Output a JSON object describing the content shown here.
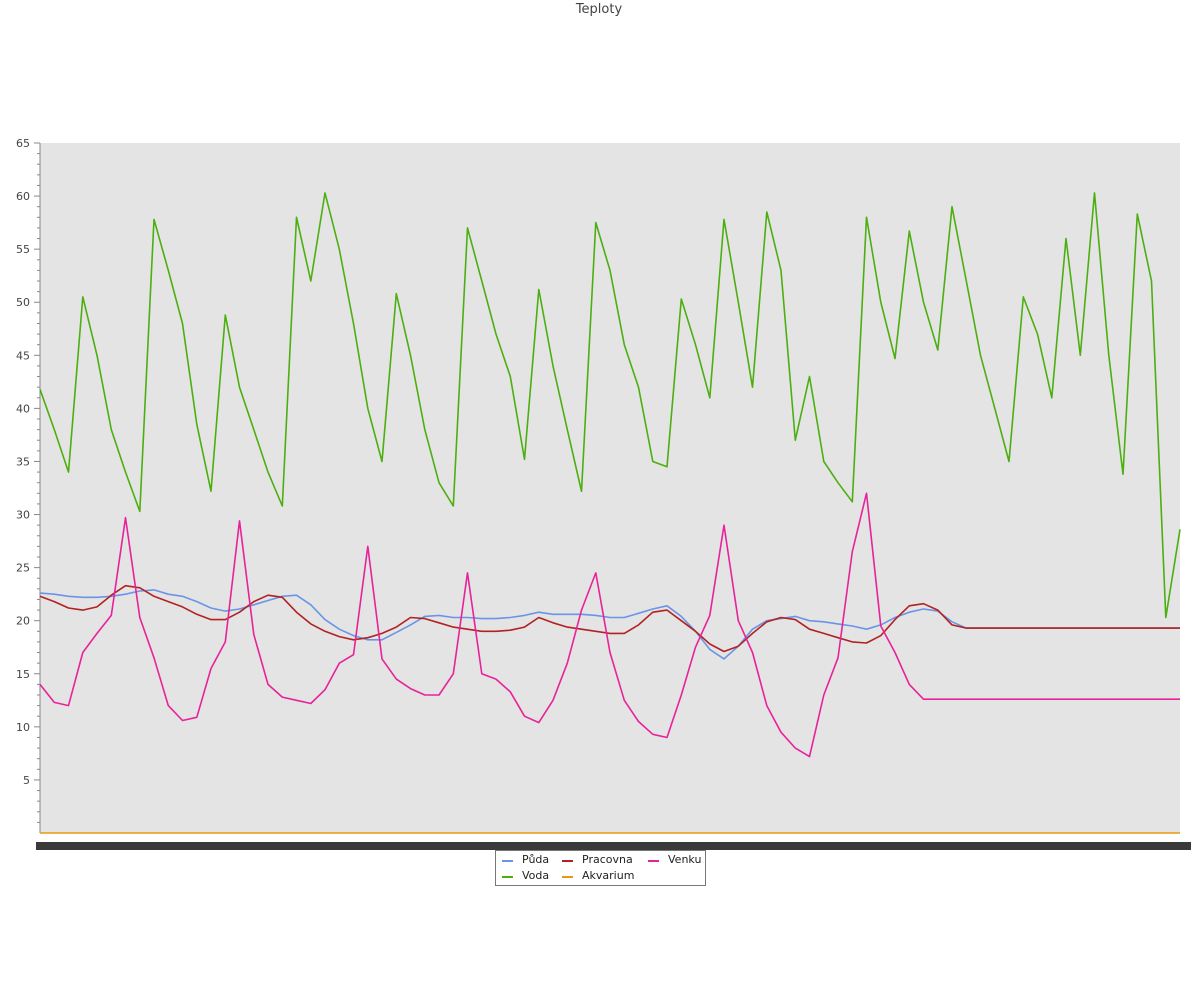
{
  "chart_data": {
    "type": "line",
    "title": "Teploty",
    "xlabel": "",
    "ylabel": "",
    "x_ticks_illegible": true,
    "x": [
      0,
      0.5,
      1,
      1.5,
      2,
      2.5,
      3,
      3.5,
      4,
      4.5,
      5,
      5.5,
      6,
      6.5,
      7,
      7.5,
      8,
      8.5,
      9,
      9.5,
      10,
      10.5,
      11,
      11.5,
      12,
      12.5,
      13,
      13.5,
      14,
      14.5,
      15,
      15.5,
      16,
      16.5,
      17,
      17.5,
      18,
      18.5,
      19,
      19.5,
      20,
      20.5,
      21,
      21.5,
      22,
      22.5,
      23,
      23.5,
      24,
      24.5,
      25,
      25.5,
      26,
      26.5,
      27,
      27.5,
      28,
      28.5,
      29,
      29.5,
      30,
      30.5,
      31,
      31.5,
      32,
      32.5,
      33,
      33.5,
      34,
      34.5,
      35,
      35.5,
      36,
      36.5,
      37,
      37.5,
      38,
      38.5,
      39,
      39.5,
      40
    ],
    "ylim": [
      0,
      65
    ],
    "yticks": [
      5,
      10,
      15,
      20,
      25,
      30,
      35,
      40,
      45,
      50,
      55,
      60,
      65
    ],
    "grid": false,
    "background": "#e4e4e4",
    "legend_position": "bottom",
    "series": [
      {
        "name": "Půda",
        "color": "#6a95e6",
        "values": [
          22.6,
          22.5,
          22.3,
          22.2,
          22.2,
          22.3,
          22.5,
          22.8,
          22.9,
          22.5,
          22.3,
          21.8,
          21.2,
          20.9,
          21.1,
          21.5,
          21.9,
          22.3,
          22.4,
          21.5,
          20.1,
          19.2,
          18.6,
          18.2,
          18.2,
          18.9,
          19.6,
          20.4,
          20.5,
          20.3,
          20.3,
          20.2,
          20.2,
          20.3,
          20.5,
          20.8,
          20.6,
          20.6,
          20.6,
          20.5,
          20.3,
          20.3,
          20.7,
          21.1,
          21.4,
          20.4,
          19.0,
          17.3,
          16.4,
          17.6,
          19.2,
          20.0,
          20.2,
          20.4,
          20.0,
          19.9,
          19.7,
          19.5,
          19.2,
          19.6,
          20.3,
          20.8,
          21.1,
          20.9,
          19.9,
          19.3,
          19.3,
          19.3,
          19.3,
          19.3,
          19.3,
          19.3,
          19.3,
          19.3,
          19.3,
          19.3,
          19.3,
          19.3,
          19.3,
          19.3,
          19.3
        ]
      },
      {
        "name": "Pracovna",
        "color": "#b22222",
        "values": [
          22.3,
          21.8,
          21.2,
          21.0,
          21.3,
          22.4,
          23.3,
          23.1,
          22.3,
          21.8,
          21.3,
          20.6,
          20.1,
          20.1,
          20.8,
          21.8,
          22.4,
          22.2,
          20.8,
          19.7,
          19.0,
          18.5,
          18.2,
          18.4,
          18.8,
          19.4,
          20.3,
          20.2,
          19.8,
          19.4,
          19.2,
          19.0,
          19.0,
          19.1,
          19.4,
          20.3,
          19.8,
          19.4,
          19.2,
          19.0,
          18.8,
          18.8,
          19.6,
          20.8,
          21.0,
          20.0,
          19.0,
          17.8,
          17.1,
          17.6,
          18.8,
          19.9,
          20.3,
          20.1,
          19.2,
          18.8,
          18.4,
          18.0,
          17.9,
          18.6,
          20.1,
          21.4,
          21.6,
          21.0,
          19.6,
          19.3,
          19.3,
          19.3,
          19.3,
          19.3,
          19.3,
          19.3,
          19.3,
          19.3,
          19.3,
          19.3,
          19.3,
          19.3,
          19.3,
          19.3,
          19.3
        ]
      },
      {
        "name": "Akvarium",
        "color": "#e89a0c",
        "values": [
          0,
          0,
          0,
          0,
          0,
          0,
          0,
          0,
          0,
          0,
          0,
          0,
          0,
          0,
          0,
          0,
          0,
          0,
          0,
          0,
          0,
          0,
          0,
          0,
          0,
          0,
          0,
          0,
          0,
          0,
          0,
          0,
          0,
          0,
          0,
          0,
          0,
          0,
          0,
          0,
          0,
          0,
          0,
          0,
          0,
          0,
          0,
          0,
          0,
          0,
          0,
          0,
          0,
          0,
          0,
          0,
          0,
          0,
          0,
          0,
          0,
          0,
          0,
          0,
          0,
          0,
          0,
          0,
          0,
          0,
          0,
          0,
          0,
          0,
          0,
          0,
          0,
          0,
          0,
          0,
          0
        ]
      },
      {
        "name": "Venku",
        "color": "#e8229a",
        "values": [
          14.0,
          12.3,
          12.0,
          17.0,
          18.8,
          20.5,
          29.7,
          20.3,
          16.5,
          12.0,
          10.6,
          10.9,
          15.5,
          18.0,
          29.4,
          18.7,
          14.0,
          12.8,
          12.5,
          12.2,
          13.5,
          16.0,
          16.8,
          27.0,
          16.4,
          14.5,
          13.6,
          13.0,
          13.0,
          15.0,
          24.5,
          15.0,
          14.5,
          13.3,
          11.0,
          10.4,
          12.5,
          16.0,
          21.0,
          24.5,
          17.0,
          12.5,
          10.5,
          9.3,
          9.0,
          13.0,
          17.5,
          20.5,
          29.0,
          20.0,
          17.0,
          12.0,
          9.5,
          8.0,
          7.2,
          13.0,
          16.5,
          26.5,
          32.0,
          19.5,
          17.0,
          14.0,
          12.6,
          12.6,
          12.6,
          12.6,
          12.6,
          12.6,
          12.6,
          12.6,
          12.6,
          12.6,
          12.6,
          12.6,
          12.6,
          12.6,
          12.6,
          12.6,
          12.6,
          12.6,
          12.6
        ]
      },
      {
        "name": "Voda",
        "color": "#4caf10",
        "values": [
          41.8,
          38.0,
          34.0,
          50.5,
          45.0,
          38.0,
          34.0,
          30.3,
          57.8,
          53.0,
          48.0,
          38.5,
          32.2,
          48.8,
          42.0,
          38.0,
          34.0,
          30.8,
          58.0,
          52.0,
          60.3,
          55.0,
          48.0,
          40.0,
          35.0,
          50.8,
          45.0,
          38.0,
          33.0,
          30.8,
          57.0,
          52.0,
          47.0,
          43.0,
          35.2,
          51.2,
          44.0,
          38.0,
          32.2,
          57.5,
          53.0,
          46.0,
          42.0,
          35.0,
          34.5,
          50.3,
          46.0,
          41.0,
          57.8,
          50.0,
          42.0,
          58.5,
          53.0,
          37.0,
          43.0,
          35.0,
          33.0,
          31.2,
          58.0,
          50.0,
          44.7,
          56.7,
          50.0,
          45.5,
          59.0,
          52.0,
          45.0,
          40.0,
          35.0,
          50.5,
          47.0,
          41.0,
          56.0,
          45.0,
          60.3,
          45.0,
          33.8,
          58.3,
          52.0,
          20.3,
          28.6
        ]
      }
    ]
  },
  "legend": {
    "items": [
      {
        "label": "Půda",
        "color": "#6a95e6"
      },
      {
        "label": "Pracovna",
        "color": "#b22222"
      },
      {
        "label": "Venku",
        "color": "#e8229a"
      },
      {
        "label": "Voda",
        "color": "#4caf10"
      },
      {
        "label": "Akvarium",
        "color": "#e89a0c"
      }
    ]
  }
}
